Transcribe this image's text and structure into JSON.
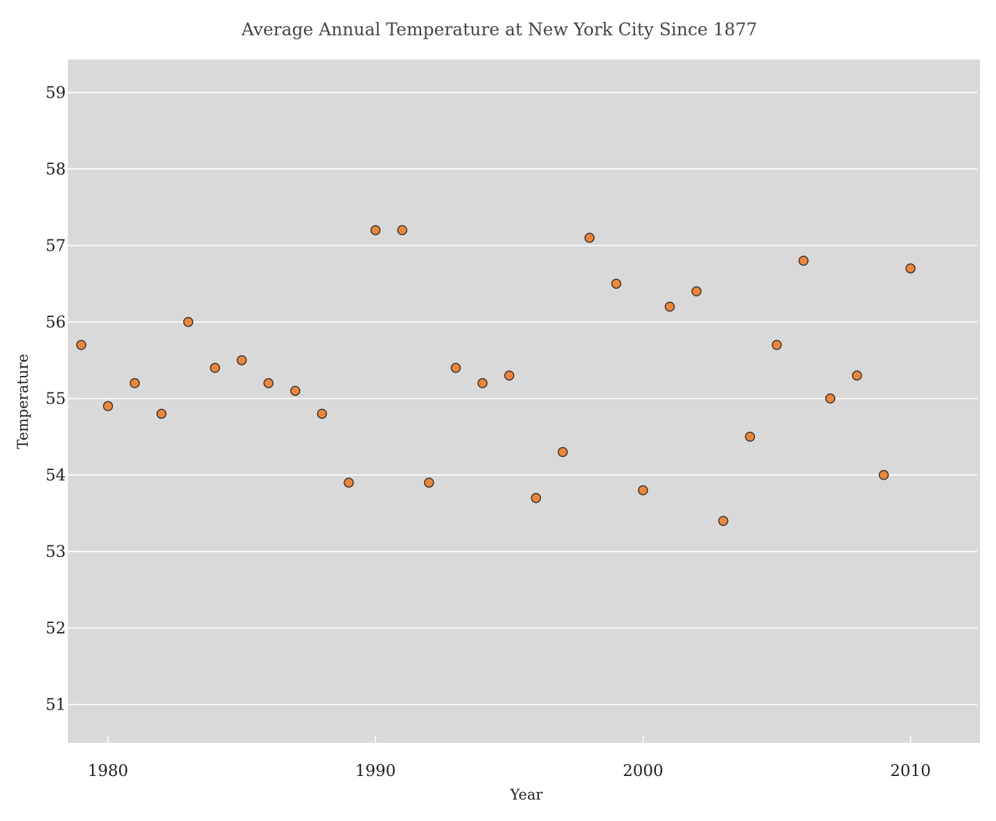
{
  "chart_data": {
    "type": "scatter",
    "title": "Average Annual Temperature at New York City Since 1877",
    "xlabel": "Year",
    "ylabel": "Temperature",
    "xlim": [
      1978.5,
      2012.6
    ],
    "ylim": [
      50.5,
      59.43
    ],
    "xticks": [
      1980,
      1990,
      2000,
      2010
    ],
    "yticks": [
      51,
      52,
      53,
      54,
      55,
      56,
      57,
      58,
      59
    ],
    "grid": "horizontal",
    "colors": {
      "plot_background": "#d9d9d9",
      "gridline": "#ffffff",
      "marker_fill": "#ef8536",
      "marker_edge": "#333333"
    },
    "series": [
      {
        "x": [
          1979,
          1980,
          1981,
          1982,
          1983,
          1984,
          1985,
          1986,
          1987,
          1988,
          1989,
          1990,
          1991,
          1992,
          1993,
          1994,
          1995,
          1996,
          1997,
          1998,
          1999,
          2000,
          2001,
          2002,
          2003,
          2004,
          2005,
          2006,
          2007,
          2008,
          2009,
          2010
        ],
        "y": [
          55.7,
          54.9,
          55.2,
          54.8,
          56.0,
          55.4,
          55.5,
          55.2,
          55.1,
          54.8,
          53.9,
          57.2,
          57.2,
          53.9,
          55.4,
          55.2,
          55.3,
          53.7,
          54.3,
          57.1,
          56.5,
          53.8,
          56.2,
          56.4,
          53.4,
          54.5,
          55.7,
          56.8,
          55.0,
          55.3,
          54.0,
          56.7
        ]
      }
    ]
  }
}
